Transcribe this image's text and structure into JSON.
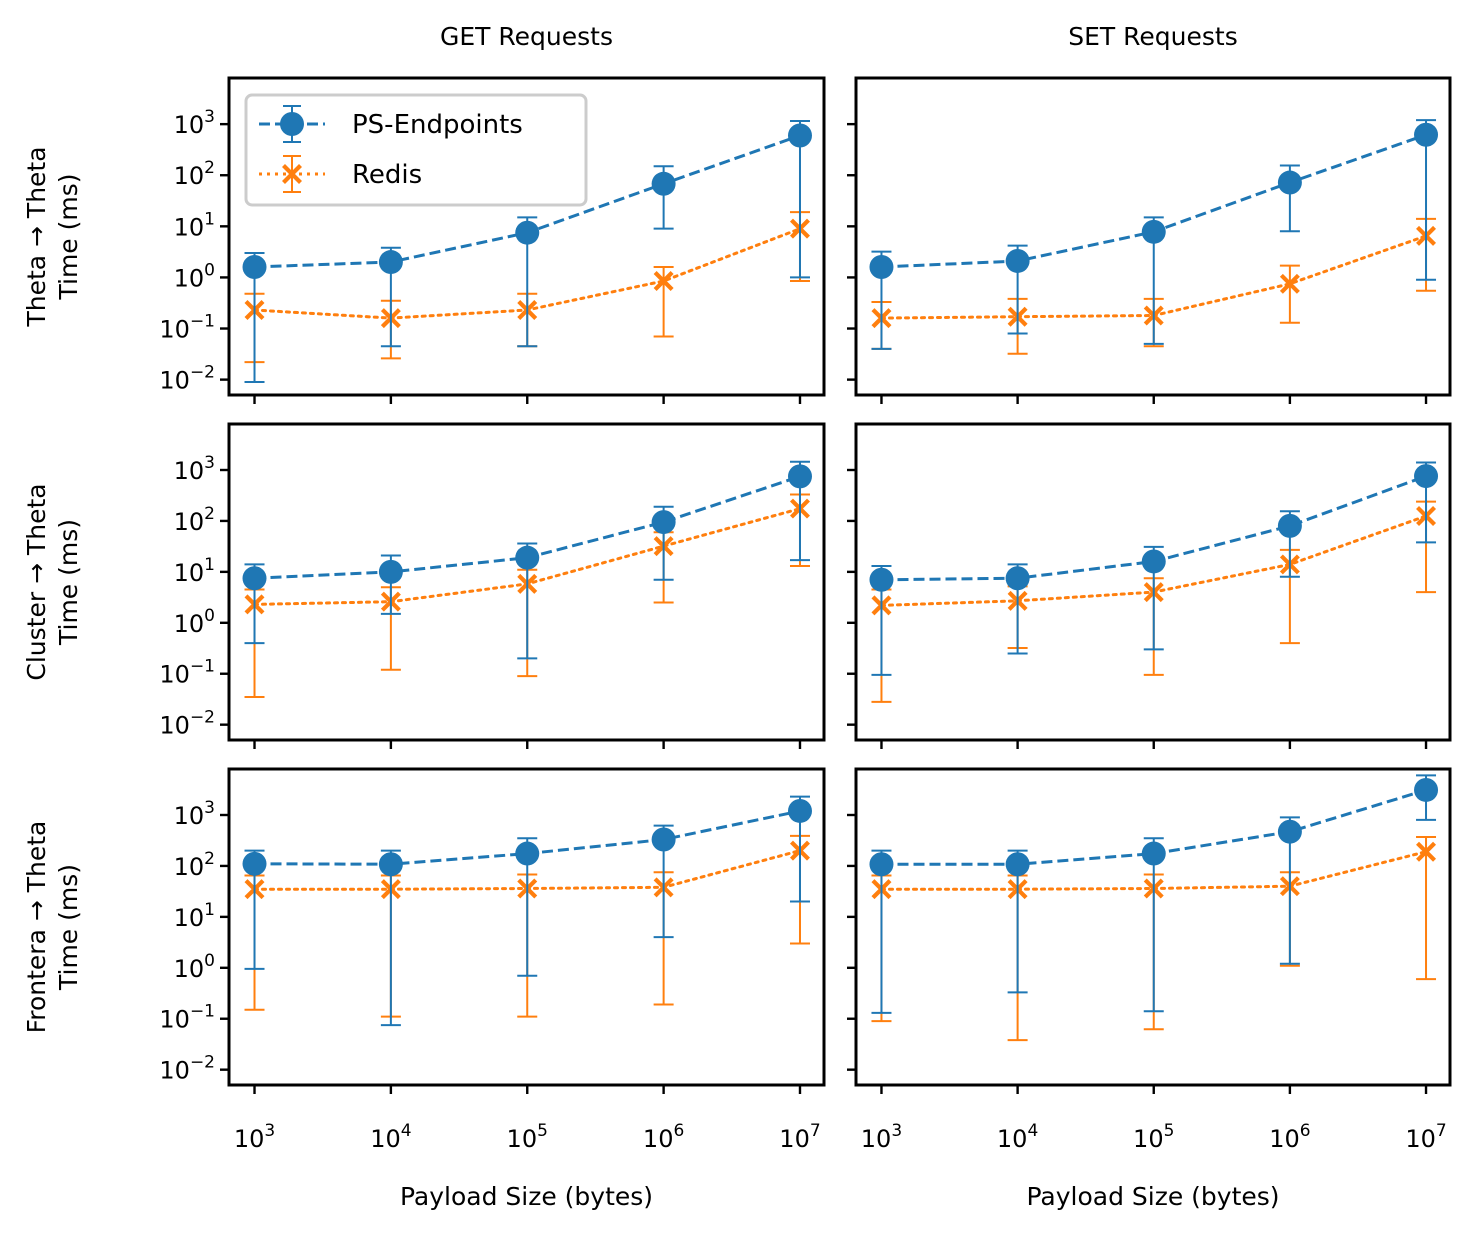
{
  "chart_data": {
    "type": "scatter",
    "x_scale": "log",
    "y_scale": "log",
    "column_titles": [
      "GET Requests",
      "SET Requests"
    ],
    "row_ylabels": [
      [
        "Theta → Theta",
        "Time (ms)"
      ],
      [
        "Cluster → Theta",
        "Time (ms)"
      ],
      [
        "Frontera → Theta",
        "Time (ms)"
      ]
    ],
    "xlabel": "Payload Size (bytes)",
    "x": [
      1000,
      10000,
      100000,
      1000000,
      10000000
    ],
    "xlim": [
      650,
      15000000
    ],
    "ylim": [
      0.005,
      8000
    ],
    "x_ticks": [
      1000,
      10000,
      100000,
      1000000,
      10000000
    ],
    "y_ticks": [
      0.01,
      0.1,
      1,
      10,
      100,
      1000
    ],
    "legend": {
      "location": "upper-left",
      "panel": [
        0,
        0
      ]
    },
    "colors": {
      "PS-Endpoints": "#1f77b4",
      "Redis": "#ff7f0e"
    },
    "panels": [
      {
        "row": 0,
        "col": 0,
        "series": [
          {
            "name": "PS-Endpoints",
            "marker": "circle",
            "linestyle": "dashed",
            "values": [
              1.6,
              2.0,
              7.5,
              68,
              600
            ],
            "err_low": [
              0.009,
              0.045,
              0.045,
              9,
              1.0
            ],
            "err_high": [
              3.0,
              3.8,
              15,
              150,
              1150
            ]
          },
          {
            "name": "Redis",
            "marker": "x",
            "linestyle": "dotted",
            "values": [
              0.23,
              0.16,
              0.23,
              0.85,
              9
            ],
            "err_low": [
              0.022,
              0.026,
              0.045,
              0.07,
              0.85
            ],
            "err_high": [
              0.48,
              0.35,
              0.48,
              1.6,
              19
            ]
          }
        ]
      },
      {
        "row": 0,
        "col": 1,
        "series": [
          {
            "name": "PS-Endpoints",
            "marker": "circle",
            "linestyle": "dashed",
            "values": [
              1.6,
              2.1,
              7.8,
              72,
              620
            ],
            "err_low": [
              0.04,
              0.08,
              0.05,
              8,
              0.9
            ],
            "err_high": [
              3.2,
              4.2,
              15,
              155,
              1200
            ]
          },
          {
            "name": "Redis",
            "marker": "x",
            "linestyle": "dotted",
            "values": [
              0.16,
              0.17,
              0.18,
              0.75,
              6.5
            ],
            "err_low": [
              0.04,
              0.032,
              0.045,
              0.13,
              0.55
            ],
            "err_high": [
              0.33,
              0.38,
              0.38,
              1.7,
              14
            ]
          }
        ]
      },
      {
        "row": 1,
        "col": 0,
        "series": [
          {
            "name": "PS-Endpoints",
            "marker": "circle",
            "linestyle": "dashed",
            "values": [
              7.5,
              10,
              19,
              95,
              750
            ],
            "err_low": [
              0.4,
              1.5,
              0.2,
              7,
              17
            ],
            "err_high": [
              14,
              21,
              36,
              190,
              1450
            ]
          },
          {
            "name": "Redis",
            "marker": "x",
            "linestyle": "dotted",
            "values": [
              2.3,
              2.6,
              5.8,
              32,
              175
            ],
            "err_low": [
              0.035,
              0.12,
              0.09,
              2.5,
              13
            ],
            "err_high": [
              4.5,
              5,
              11,
              60,
              330
            ]
          }
        ]
      },
      {
        "row": 1,
        "col": 1,
        "series": [
          {
            "name": "PS-Endpoints",
            "marker": "circle",
            "linestyle": "dashed",
            "values": [
              7,
              7.5,
              16,
              80,
              760
            ],
            "err_low": [
              0.095,
              0.25,
              0.3,
              8,
              38
            ],
            "err_high": [
              13,
              14,
              31,
              155,
              1400
            ]
          },
          {
            "name": "Redis",
            "marker": "x",
            "linestyle": "dotted",
            "values": [
              2.2,
              2.7,
              4.0,
              14,
              125
            ],
            "err_low": [
              0.028,
              0.32,
              0.095,
              0.4,
              4
            ],
            "err_high": [
              4.5,
              5.2,
              7.5,
              27,
              240
            ]
          }
        ]
      },
      {
        "row": 2,
        "col": 0,
        "series": [
          {
            "name": "PS-Endpoints",
            "marker": "circle",
            "linestyle": "dashed",
            "values": [
              110,
              108,
              175,
              330,
              1200
            ],
            "err_low": [
              0.95,
              0.075,
              0.7,
              4,
              20
            ],
            "err_high": [
              200,
              200,
              350,
              620,
              2300
            ]
          },
          {
            "name": "Redis",
            "marker": "x",
            "linestyle": "dotted",
            "values": [
              35,
              35,
              36,
              38,
              200
            ],
            "err_low": [
              0.15,
              0.11,
              0.11,
              0.19,
              3
            ],
            "err_high": [
              65,
              65,
              68,
              75,
              390
            ]
          }
        ]
      },
      {
        "row": 2,
        "col": 1,
        "series": [
          {
            "name": "PS-Endpoints",
            "marker": "circle",
            "linestyle": "dashed",
            "values": [
              108,
              108,
              175,
              470,
              3100
            ],
            "err_low": [
              0.13,
              0.33,
              0.14,
              1.2,
              800
            ],
            "err_high": [
              200,
              200,
              350,
              900,
              6000
            ]
          },
          {
            "name": "Redis",
            "marker": "x",
            "linestyle": "dotted",
            "values": [
              35,
              35,
              36,
              40,
              190
            ],
            "err_low": [
              0.09,
              0.038,
              0.062,
              1.1,
              0.6
            ],
            "err_high": [
              65,
              65,
              68,
              75,
              370
            ]
          }
        ]
      }
    ]
  }
}
